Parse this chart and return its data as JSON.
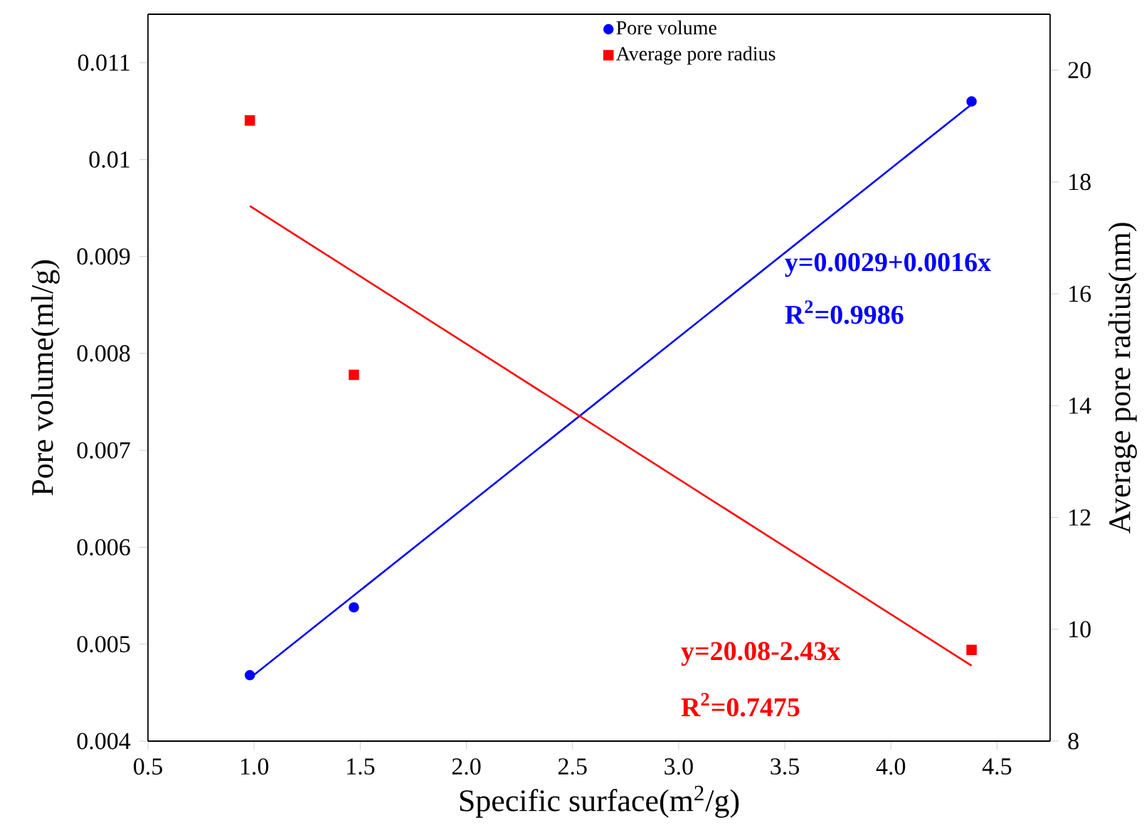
{
  "chart_data": {
    "type": "scatter",
    "xlabel": "Specific surface(m$^{2}$/g)",
    "ylabel": "Pore volume(ml/g)",
    "y2label": "Average pore radius(nm)",
    "xlim": [
      0.5,
      4.75
    ],
    "ylim": [
      0.004,
      0.0115
    ],
    "y2lim": [
      8,
      21
    ],
    "xticks": [
      {
        "value": 0.5,
        "label": "0.5"
      },
      {
        "value": 1,
        "label": "1.0"
      },
      {
        "value": 1.5,
        "label": "1.5"
      },
      {
        "value": 2,
        "label": "2.0"
      },
      {
        "value": 2.5,
        "label": "2.5"
      },
      {
        "value": 3,
        "label": "3.0"
      },
      {
        "value": 3.5,
        "label": "3.5"
      },
      {
        "value": 4,
        "label": "4.0"
      },
      {
        "value": 4.5,
        "label": "4.5"
      }
    ],
    "yticks": [
      0.004,
      0.005,
      0.006,
      0.007,
      0.008,
      0.009,
      0.01,
      0.011
    ],
    "y2ticks": [
      8,
      10,
      12,
      14,
      16,
      18,
      20
    ],
    "series": [
      {
        "name": "Pore volume",
        "color": "#0000ff",
        "marker": "circle",
        "x": [
          0.98,
          1.47,
          4.38
        ],
        "values": [
          0.00468,
          0.00538,
          0.0106
        ]
      },
      {
        "name": "Average pore radius",
        "color": "#ff0000",
        "marker": "square",
        "axis": "y2",
        "x": [
          0.98,
          1.47,
          4.38
        ],
        "values": [
          19.1,
          14.55,
          9.63
        ]
      },
      {
        "type": "line",
        "color": "#0000ff",
        "x": [
          0.98,
          4.38
        ],
        "values": [
          0.00465,
          0.01057
        ]
      },
      {
        "type": "line",
        "color": "#ff0000",
        "axis": "y2",
        "x": [
          0.98,
          4.38
        ],
        "values": [
          17.57,
          9.35
        ]
      }
    ],
    "annotations": [
      "y=0.0029+0.0016x",
      "R$^{2}$=0.9986",
      "y=20.08-2.43x",
      "R$^{2}$=0.7475"
    ],
    "legend": "top right",
    "grid": false
  }
}
